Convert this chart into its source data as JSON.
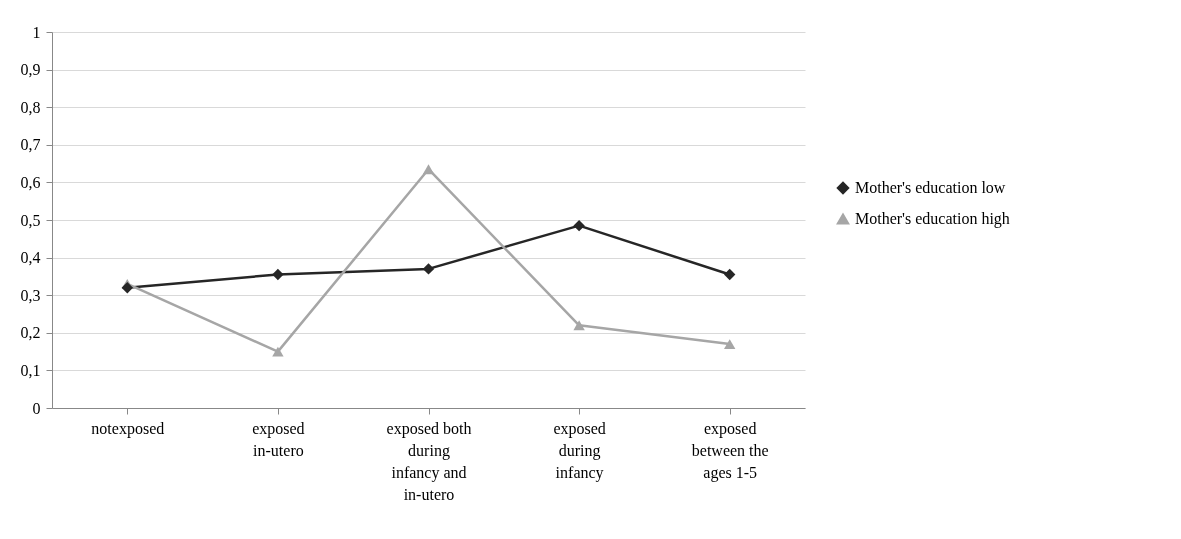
{
  "chart_data": {
    "type": "line",
    "categories": [
      "notexposed",
      "exposed in-utero",
      "exposed both during infancy and in-utero",
      "exposed during infancy",
      "exposed between the ages 1-5"
    ],
    "series": [
      {
        "name": "Mother's education low",
        "color": "#262626",
        "marker": "diamond",
        "values": [
          0.32,
          0.355,
          0.37,
          0.485,
          0.355
        ]
      },
      {
        "name": "Mother's education high",
        "color": "#a6a6a6",
        "marker": "triangle",
        "values": [
          0.33,
          0.15,
          0.635,
          0.22,
          0.17
        ]
      }
    ],
    "ylim": [
      0,
      1
    ],
    "yticks": [
      0,
      {
        "value": 0.1,
        "label": "0,1"
      },
      {
        "value": 0.2,
        "label": "0,2"
      },
      {
        "value": 0.3,
        "label": "0,3"
      },
      {
        "value": 0.4,
        "label": "0,4"
      },
      {
        "value": 0.5,
        "label": "0,5"
      },
      {
        "value": 0.6,
        "label": "0,6"
      },
      {
        "value": 0.7,
        "label": "0,7"
      },
      {
        "value": 0.8,
        "label": "0,8"
      },
      {
        "value": 0.9,
        "label": "0,9"
      },
      1
    ],
    "grid": "y",
    "legend": "right",
    "line_style": "solid"
  }
}
